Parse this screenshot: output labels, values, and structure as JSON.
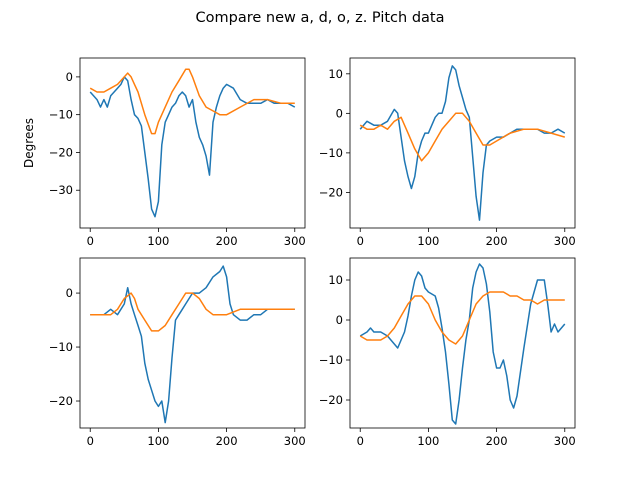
{
  "figure": {
    "title": "Compare new a, d, o, z. Pitch data",
    "series_colors": [
      "#1f77b4",
      "#ff7f0e"
    ]
  },
  "chart_data": [
    {
      "type": "line",
      "panel": "top-left",
      "ylabel": "Degrees",
      "xlim": [
        -15,
        315
      ],
      "ylim": [
        -40,
        5
      ],
      "xticks": [
        0,
        100,
        200,
        300
      ],
      "yticks": [
        0,
        -10,
        -20,
        -30
      ],
      "series": [
        {
          "color": "#1f77b4",
          "x": [
            0,
            10,
            15,
            20,
            25,
            30,
            35,
            40,
            45,
            50,
            55,
            60,
            65,
            70,
            75,
            80,
            85,
            90,
            95,
            100,
            105,
            110,
            115,
            120,
            125,
            130,
            135,
            140,
            145,
            150,
            155,
            160,
            165,
            170,
            175,
            180,
            185,
            190,
            195,
            200,
            210,
            220,
            230,
            240,
            250,
            260,
            270,
            280,
            290,
            300
          ],
          "y": [
            -4,
            -6,
            -8,
            -6,
            -8,
            -5,
            -4,
            -3,
            -2,
            0,
            -1,
            -6,
            -10,
            -11,
            -13,
            -20,
            -27,
            -35,
            -37,
            -33,
            -18,
            -12,
            -10,
            -8,
            -7,
            -5,
            -4,
            -5,
            -8,
            -6,
            -12,
            -16,
            -18,
            -21,
            -26,
            -12,
            -8,
            -5,
            -3,
            -2,
            -3,
            -6,
            -7,
            -7,
            -7,
            -6,
            -7,
            -7,
            -7,
            -8
          ]
        },
        {
          "color": "#ff7f0e",
          "x": [
            0,
            10,
            20,
            30,
            40,
            50,
            55,
            60,
            65,
            70,
            80,
            90,
            95,
            100,
            110,
            120,
            130,
            140,
            145,
            150,
            160,
            170,
            180,
            190,
            200,
            220,
            240,
            260,
            280,
            300
          ],
          "y": [
            -3,
            -4,
            -4,
            -3,
            -2,
            0,
            1,
            0,
            -2,
            -4,
            -10,
            -15,
            -15,
            -12,
            -8,
            -4,
            -1,
            2,
            2,
            0,
            -5,
            -8,
            -9,
            -10,
            -10,
            -8,
            -6,
            -6,
            -7,
            -7
          ]
        }
      ]
    },
    {
      "type": "line",
      "panel": "top-right",
      "xlim": [
        -15,
        315
      ],
      "ylim": [
        -29,
        14
      ],
      "xticks": [
        0,
        100,
        200,
        300
      ],
      "yticks": [
        10,
        0,
        -10,
        -20
      ],
      "series": [
        {
          "color": "#1f77b4",
          "x": [
            0,
            10,
            20,
            30,
            40,
            50,
            55,
            60,
            65,
            70,
            75,
            80,
            85,
            90,
            95,
            100,
            105,
            110,
            115,
            120,
            125,
            130,
            135,
            140,
            145,
            150,
            155,
            160,
            165,
            170,
            175,
            180,
            185,
            190,
            200,
            210,
            220,
            230,
            240,
            250,
            260,
            270,
            280,
            290,
            300
          ],
          "y": [
            -4,
            -2,
            -3,
            -3,
            -2,
            1,
            0,
            -6,
            -12,
            -16,
            -19,
            -16,
            -10,
            -7,
            -5,
            -5,
            -3,
            -1,
            0,
            0,
            3,
            9,
            12,
            11,
            7,
            4,
            1,
            -1,
            -11,
            -21,
            -27,
            -15,
            -8,
            -7,
            -6,
            -6,
            -5,
            -4,
            -4,
            -4,
            -4,
            -5,
            -5,
            -4,
            -5
          ]
        },
        {
          "color": "#ff7f0e",
          "x": [
            0,
            10,
            20,
            30,
            40,
            50,
            60,
            70,
            80,
            90,
            100,
            110,
            120,
            130,
            140,
            150,
            160,
            170,
            180,
            190,
            200,
            220,
            240,
            260,
            280,
            300
          ],
          "y": [
            -3,
            -4,
            -4,
            -3,
            -4,
            -2,
            -1,
            -5,
            -9,
            -12,
            -10,
            -7,
            -4,
            -2,
            0,
            0,
            -2,
            -5,
            -8,
            -8,
            -7,
            -5,
            -4,
            -4,
            -5,
            -6
          ]
        }
      ]
    },
    {
      "type": "line",
      "panel": "bottom-left",
      "xlim": [
        -15,
        315
      ],
      "ylim": [
        -25,
        6.5
      ],
      "xticks": [
        0,
        100,
        200,
        300
      ],
      "yticks": [
        0,
        -10,
        -20
      ],
      "series": [
        {
          "color": "#1f77b4",
          "x": [
            0,
            10,
            20,
            30,
            40,
            50,
            55,
            60,
            65,
            70,
            75,
            80,
            85,
            90,
            95,
            100,
            105,
            110,
            115,
            120,
            125,
            130,
            135,
            140,
            145,
            150,
            160,
            170,
            180,
            190,
            195,
            200,
            205,
            210,
            220,
            230,
            240,
            250,
            260,
            270,
            280,
            290,
            300
          ],
          "y": [
            -4,
            -4,
            -4,
            -3,
            -4,
            -2,
            1,
            -2,
            -4,
            -6,
            -8,
            -13,
            -16,
            -18,
            -20,
            -21,
            -20,
            -24,
            -20,
            -12,
            -5,
            -4,
            -3,
            -2,
            -1,
            0,
            0,
            1,
            3,
            4,
            5,
            3,
            -2,
            -4,
            -5,
            -5,
            -4,
            -4,
            -3,
            -3,
            -3,
            -3,
            -3
          ]
        },
        {
          "color": "#ff7f0e",
          "x": [
            0,
            10,
            20,
            30,
            40,
            50,
            60,
            65,
            70,
            80,
            90,
            100,
            110,
            120,
            130,
            140,
            150,
            160,
            170,
            180,
            190,
            200,
            220,
            240,
            260,
            280,
            300
          ],
          "y": [
            -4,
            -4,
            -4,
            -4,
            -3,
            -1,
            0,
            -1,
            -3,
            -5,
            -7,
            -7,
            -6,
            -4,
            -2,
            0,
            0,
            -1,
            -3,
            -4,
            -4,
            -4,
            -3,
            -3,
            -3,
            -3,
            -3
          ]
        }
      ]
    },
    {
      "type": "line",
      "panel": "bottom-right",
      "xlim": [
        -15,
        315
      ],
      "ylim": [
        -27,
        15.5
      ],
      "xticks": [
        0,
        100,
        200,
        300
      ],
      "yticks": [
        10,
        0,
        -10,
        -20
      ],
      "series": [
        {
          "color": "#1f77b4",
          "x": [
            0,
            10,
            15,
            20,
            30,
            40,
            50,
            55,
            60,
            65,
            70,
            75,
            80,
            85,
            90,
            95,
            100,
            110,
            115,
            120,
            125,
            130,
            135,
            140,
            145,
            150,
            155,
            160,
            165,
            170,
            175,
            180,
            185,
            190,
            195,
            200,
            205,
            210,
            215,
            220,
            225,
            230,
            240,
            250,
            260,
            265,
            270,
            275,
            280,
            285,
            290,
            295,
            300
          ],
          "y": [
            -4,
            -3,
            -2,
            -3,
            -3,
            -4,
            -6,
            -7,
            -5,
            -3,
            1,
            6,
            10,
            12,
            11,
            8,
            7,
            6,
            3,
            -2,
            -8,
            -16,
            -25,
            -26,
            -20,
            -12,
            -5,
            0,
            8,
            12,
            14,
            13,
            9,
            2,
            -8,
            -12,
            -12,
            -10,
            -14,
            -20,
            -22,
            -19,
            -7,
            4,
            10,
            10,
            10,
            4,
            -3,
            -1,
            -3,
            -2,
            -1
          ]
        },
        {
          "color": "#ff7f0e",
          "x": [
            0,
            10,
            20,
            30,
            40,
            50,
            60,
            70,
            80,
            90,
            100,
            110,
            120,
            130,
            140,
            150,
            160,
            170,
            180,
            190,
            200,
            210,
            220,
            230,
            240,
            250,
            260,
            270,
            280,
            290,
            300
          ],
          "y": [
            -4,
            -5,
            -5,
            -5,
            -4,
            -2,
            1,
            4,
            6,
            6,
            4,
            0,
            -3,
            -5,
            -6,
            -4,
            0,
            4,
            6,
            7,
            7,
            7,
            6,
            6,
            5,
            5,
            4,
            5,
            5,
            5,
            5
          ]
        }
      ]
    }
  ]
}
